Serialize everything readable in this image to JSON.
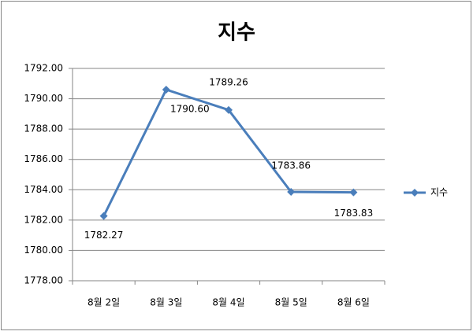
{
  "chart_data": {
    "type": "line",
    "title": "지수",
    "categories": [
      "8월 2일",
      "8월 3일",
      "8월 4일",
      "8월 5일",
      "8월 6일"
    ],
    "series": [
      {
        "name": "지수",
        "color": "#4a7ebb",
        "values": [
          1782.27,
          1790.6,
          1789.26,
          1783.86,
          1783.83
        ],
        "value_labels": [
          "1782.27",
          "1790.60",
          "1789.26",
          "1783.86",
          "1783.83"
        ]
      }
    ],
    "ylim": [
      1778,
      1792
    ],
    "yticks": [
      {
        "value": 1778,
        "label": "1778.00"
      },
      {
        "value": 1780,
        "label": "1780.00"
      },
      {
        "value": 1782,
        "label": "1782.00"
      },
      {
        "value": 1784,
        "label": "1784.00"
      },
      {
        "value": 1786,
        "label": "1786.00"
      },
      {
        "value": 1788,
        "label": "1788.00"
      },
      {
        "value": 1790,
        "label": "1790.00"
      },
      {
        "value": 1792,
        "label": "1792.00"
      }
    ],
    "grid": true,
    "legend": "right"
  }
}
